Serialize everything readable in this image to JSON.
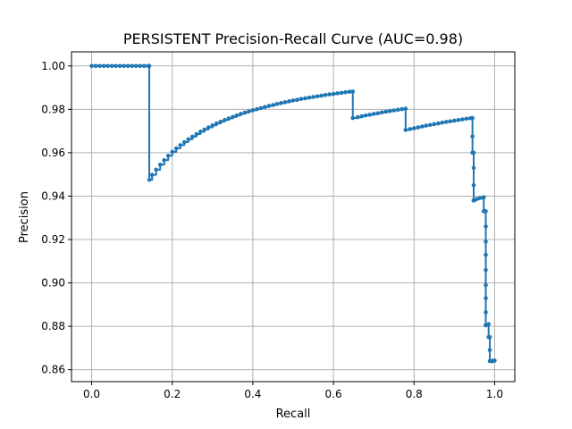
{
  "chart_data": {
    "type": "line",
    "title": "PERSISTENT Precision-Recall Curve (AUC=0.98)",
    "xlabel": "Recall",
    "ylabel": "Precision",
    "xlim": [
      -0.05,
      1.05
    ],
    "ylim": [
      0.8545,
      1.0065
    ],
    "x_ticks": [
      0.0,
      0.2,
      0.4,
      0.6,
      0.8,
      1.0
    ],
    "x_tick_labels": [
      "0.0",
      "0.2",
      "0.4",
      "0.6",
      "0.8",
      "1.0"
    ],
    "y_ticks": [
      0.86,
      0.88,
      0.9,
      0.92,
      0.94,
      0.96,
      0.98,
      1.0
    ],
    "y_tick_labels": [
      "0.86",
      "0.88",
      "0.90",
      "0.92",
      "0.94",
      "0.96",
      "0.98",
      "1.00"
    ],
    "grid": true,
    "legend": "none",
    "line_style": "steps-post",
    "marker": "dot",
    "colors": {
      "series": "#1f77b4",
      "grid": "#b0b0b0",
      "axes": "#000000"
    },
    "series": [
      {
        "x": [
          0.0,
          0.01,
          0.02,
          0.03,
          0.04,
          0.05,
          0.06,
          0.07,
          0.08,
          0.09,
          0.1,
          0.11,
          0.12,
          0.13,
          0.14,
          0.143,
          0.143,
          0.15,
          0.16,
          0.17,
          0.18,
          0.19,
          0.2,
          0.21,
          0.22,
          0.23,
          0.24,
          0.25,
          0.26,
          0.27,
          0.28,
          0.29,
          0.3,
          0.31,
          0.32,
          0.33,
          0.34,
          0.35,
          0.36,
          0.37,
          0.38,
          0.39,
          0.4,
          0.41,
          0.42,
          0.43,
          0.44,
          0.45,
          0.46,
          0.47,
          0.48,
          0.49,
          0.5,
          0.51,
          0.52,
          0.53,
          0.54,
          0.55,
          0.56,
          0.57,
          0.58,
          0.59,
          0.6,
          0.61,
          0.62,
          0.63,
          0.64,
          0.648,
          0.648,
          0.66,
          0.67,
          0.68,
          0.69,
          0.7,
          0.71,
          0.72,
          0.73,
          0.74,
          0.75,
          0.76,
          0.77,
          0.779,
          0.779,
          0.79,
          0.8,
          0.81,
          0.82,
          0.83,
          0.84,
          0.85,
          0.86,
          0.87,
          0.88,
          0.89,
          0.9,
          0.91,
          0.92,
          0.93,
          0.94,
          0.945,
          0.945,
          0.945,
          0.945,
          0.948,
          0.948,
          0.948,
          0.948,
          0.948,
          0.948,
          0.948,
          0.955,
          0.962,
          0.97,
          0.973,
          0.973,
          0.973,
          0.975,
          0.978,
          0.978,
          0.978,
          0.978,
          0.978,
          0.978,
          0.978,
          0.978,
          0.978,
          0.978,
          0.978,
          0.978,
          0.978,
          0.985,
          0.985,
          0.988,
          0.988,
          0.988,
          0.994,
          0.994,
          0.994,
          0.994,
          0.994,
          0.994,
          0.994,
          0.994,
          0.994,
          1.0
        ],
        "y": [
          1.0,
          1.0,
          1.0,
          1.0,
          1.0,
          1.0,
          1.0,
          1.0,
          1.0,
          1.0,
          1.0,
          1.0,
          1.0,
          1.0,
          1.0,
          1.0,
          0.9475,
          0.9498,
          0.9522,
          0.9545,
          0.9566,
          0.9586,
          0.9604,
          0.962,
          0.9635,
          0.9649,
          0.9662,
          0.9674,
          0.9686,
          0.9697,
          0.9707,
          0.9717,
          0.9726,
          0.9735,
          0.9743,
          0.9751,
          0.9758,
          0.9765,
          0.9772,
          0.9779,
          0.9785,
          0.9791,
          0.9796,
          0.9801,
          0.9806,
          0.9811,
          0.9816,
          0.982,
          0.9825,
          0.9829,
          0.9833,
          0.9837,
          0.9841,
          0.9844,
          0.9848,
          0.9851,
          0.9854,
          0.9857,
          0.986,
          0.9863,
          0.9866,
          0.9869,
          0.9871,
          0.9874,
          0.9876,
          0.9879,
          0.9881,
          0.9882,
          0.976,
          0.9764,
          0.9768,
          0.9772,
          0.9775,
          0.9779,
          0.9782,
          0.9786,
          0.9789,
          0.9792,
          0.9795,
          0.9798,
          0.9801,
          0.9803,
          0.9705,
          0.9709,
          0.9713,
          0.9717,
          0.9721,
          0.9725,
          0.9728,
          0.9732,
          0.9735,
          0.9739,
          0.9742,
          0.9745,
          0.9748,
          0.9751,
          0.9754,
          0.9757,
          0.9759,
          0.976,
          0.9675,
          0.96,
          0.96,
          0.96,
          0.953,
          0.945,
          0.938,
          0.938,
          0.938,
          0.938,
          0.9386,
          0.939,
          0.9393,
          0.9395,
          0.933,
          0.933,
          0.9332,
          0.933,
          0.926,
          0.919,
          0.913,
          0.906,
          0.899,
          0.893,
          0.8865,
          0.8805,
          0.8805,
          0.8805,
          0.8805,
          0.8805,
          0.881,
          0.875,
          0.875,
          0.869,
          0.864,
          0.864,
          0.864,
          0.864,
          0.864,
          0.864,
          0.864,
          0.864,
          0.864,
          0.864,
          0.8642
        ]
      }
    ]
  }
}
